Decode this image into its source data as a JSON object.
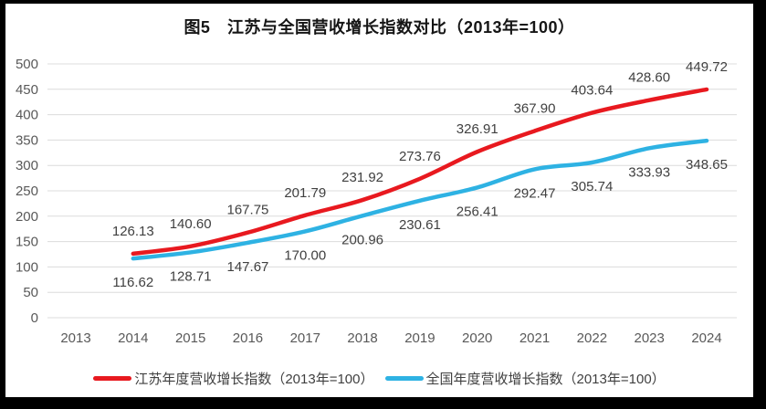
{
  "title": "图5　江苏与全国营收增长指数对比（2013年=100）",
  "colors": {
    "page_border": "#000000",
    "canvas_background": "#ffffff",
    "gridline": "#dcdcdc",
    "axis_tick_label": "#595959",
    "data_label": "#404040",
    "title_text": "#151515",
    "legend_text": "#3f3f3f"
  },
  "chart_data": {
    "type": "line",
    "title": "图5　江苏与全国营收增长指数对比（2013年=100）",
    "categories": [
      "2013",
      "2014",
      "2015",
      "2016",
      "2017",
      "2018",
      "2019",
      "2020",
      "2021",
      "2022",
      "2023",
      "2024"
    ],
    "series": [
      {
        "name": "江苏年度营收增长指数（2013年=100）",
        "color": "#e8191f",
        "label_position": "above",
        "values": [
          null,
          126.13,
          140.6,
          167.75,
          201.79,
          231.92,
          273.76,
          326.91,
          367.9,
          403.64,
          428.6,
          449.72
        ]
      },
      {
        "name": "全国年度营收增长指数（2013年=100）",
        "color": "#2eb2e3",
        "label_position": "below",
        "values": [
          null,
          116.62,
          128.71,
          147.67,
          170.0,
          200.96,
          230.61,
          256.41,
          292.47,
          305.74,
          333.93,
          348.65
        ]
      }
    ],
    "xlabel": "",
    "ylabel": "",
    "ylim": [
      0,
      500
    ],
    "yticks": [
      0,
      50,
      100,
      150,
      200,
      250,
      300,
      350,
      400,
      450,
      500
    ],
    "grid": true,
    "smooth_lines": true,
    "point_markers": false,
    "data_labels_decimals": 2,
    "legend_position": "bottom"
  }
}
